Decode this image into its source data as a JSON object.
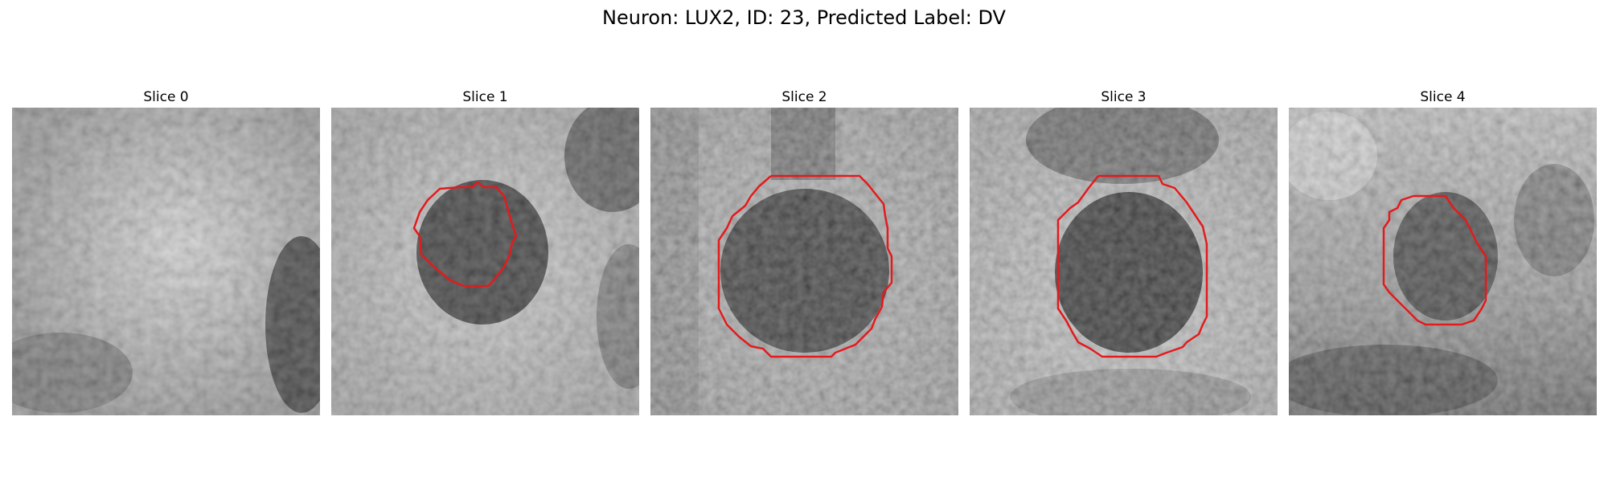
{
  "figure": {
    "title": "Neuron: LUX2, ID: 23, Predicted Label: DV"
  },
  "panels": [
    {
      "title": "Slice 0",
      "has_contour": false
    },
    {
      "title": "Slice 1",
      "has_contour": true
    },
    {
      "title": "Slice 2",
      "has_contour": true
    },
    {
      "title": "Slice 3",
      "has_contour": true
    },
    {
      "title": "Slice 4",
      "has_contour": true
    }
  ],
  "colors": {
    "contour": "#e41a1c",
    "background": "#ffffff"
  }
}
